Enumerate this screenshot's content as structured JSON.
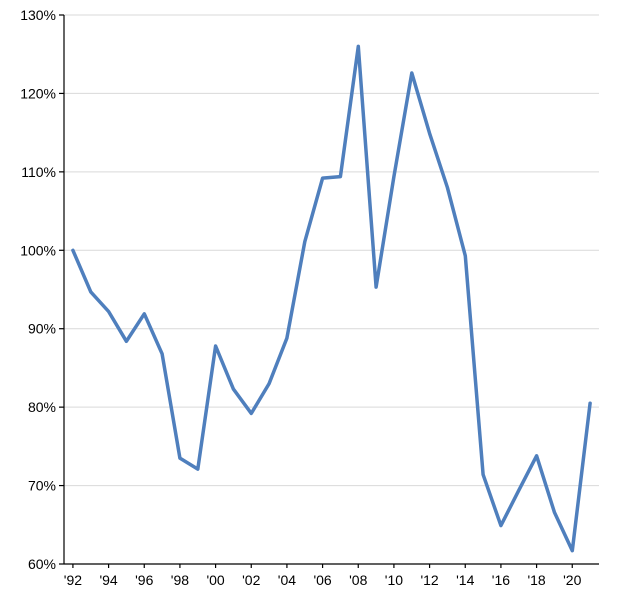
{
  "chart_data": {
    "type": "line",
    "title": "",
    "xlabel": "",
    "ylabel": "",
    "x_tick_labels": [
      "'92",
      "'94",
      "'96",
      "'98",
      "'00",
      "'02",
      "'04",
      "'06",
      "'08",
      "'10",
      "'12",
      "'14",
      "'16",
      "'18",
      "'20"
    ],
    "y_tick_labels": [
      "60%",
      "70%",
      "80%",
      "90%",
      "100%",
      "110%",
      "120%",
      "130%"
    ],
    "ylim": [
      60,
      130
    ],
    "y_ticks": [
      60,
      70,
      80,
      90,
      100,
      110,
      120,
      130
    ],
    "xlim": [
      1991.5,
      2021.5
    ],
    "x_ticks": [
      1992,
      1994,
      1996,
      1998,
      2000,
      2002,
      2004,
      2006,
      2008,
      2010,
      2012,
      2014,
      2016,
      2018,
      2020
    ],
    "grid": true,
    "line_color": "#4f7fbd",
    "x": [
      1992,
      1993,
      1994,
      1995,
      1996,
      1997,
      1998,
      1999,
      2000,
      2001,
      2002,
      2003,
      2004,
      2005,
      2006,
      2007,
      2008,
      2009,
      2010,
      2011,
      2012,
      2013,
      2014,
      2015,
      2016,
      2017,
      2018,
      2019,
      2020,
      2021
    ],
    "values": [
      100,
      94.7,
      92.2,
      88.4,
      91.9,
      86.8,
      73.5,
      72.1,
      87.8,
      82.3,
      79.2,
      83.0,
      88.8,
      101.1,
      109.2,
      109.4,
      126.0,
      95.3,
      109.4,
      122.6,
      114.9,
      108.0,
      99.3,
      71.4,
      64.9,
      69.4,
      73.8,
      66.6,
      61.7,
      80.5
    ]
  }
}
